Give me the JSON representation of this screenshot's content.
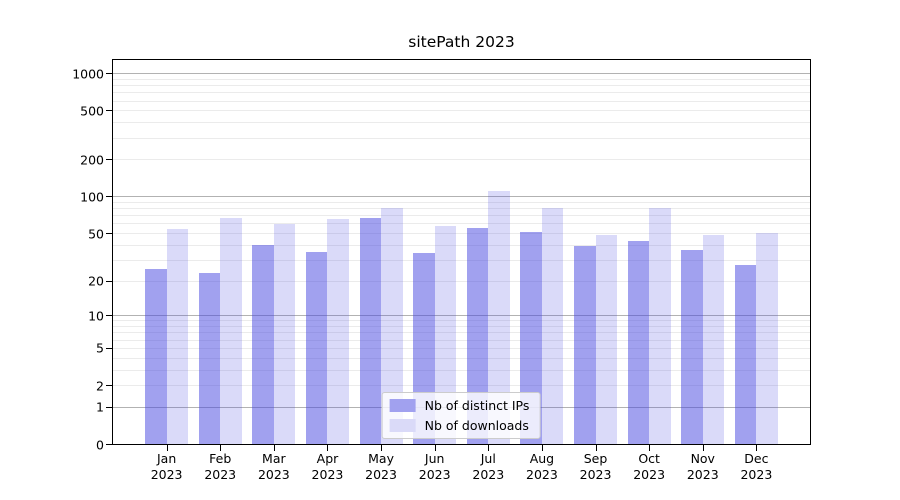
{
  "chart_data": {
    "type": "bar",
    "title": "sitePath 2023",
    "categories": [
      "Jan",
      "Feb",
      "Mar",
      "Apr",
      "May",
      "Jun",
      "Jul",
      "Aug",
      "Sep",
      "Oct",
      "Nov",
      "Dec"
    ],
    "x_year_label": "2023",
    "series": [
      {
        "name": "Nb of distinct IPs",
        "values": [
          25,
          23,
          40,
          35,
          67,
          34,
          55,
          51,
          39,
          43,
          36,
          27
        ],
        "fill": "rgba(68,68,224,0.5)",
        "swatch": "#a1a1ef"
      },
      {
        "name": "Nb of downloads",
        "values": [
          54,
          66,
          59,
          65,
          81,
          57,
          110,
          81,
          48,
          81,
          48,
          50
        ],
        "fill": "rgba(68,68,224,0.2)",
        "swatch": "#dadaf8"
      }
    ],
    "xlabel": "",
    "ylabel": "",
    "yscale": "log10(value+1)",
    "yticks": [
      1000,
      500,
      200,
      100,
      50,
      20,
      10,
      5,
      2,
      1,
      0
    ],
    "ylim": [
      0,
      1281
    ],
    "xlim_slots": 13,
    "bar_width_fraction": 0.4,
    "grid": {
      "on": true,
      "major_lines": [
        1,
        10,
        100,
        1000
      ],
      "minor_decades": [
        1,
        10,
        100
      ],
      "minor_multiples": [
        2,
        3,
        4,
        5,
        6,
        7,
        8,
        9
      ],
      "major_color": "#b2b2b2",
      "minor_color": "#ebebeb"
    },
    "legend": {
      "position": "lower center",
      "background": "rgba(255,255,255,0.8)",
      "border_color": "#cccccc"
    },
    "colors": {
      "spine": "#000000",
      "text": "#000000",
      "background": "#ffffff"
    }
  }
}
